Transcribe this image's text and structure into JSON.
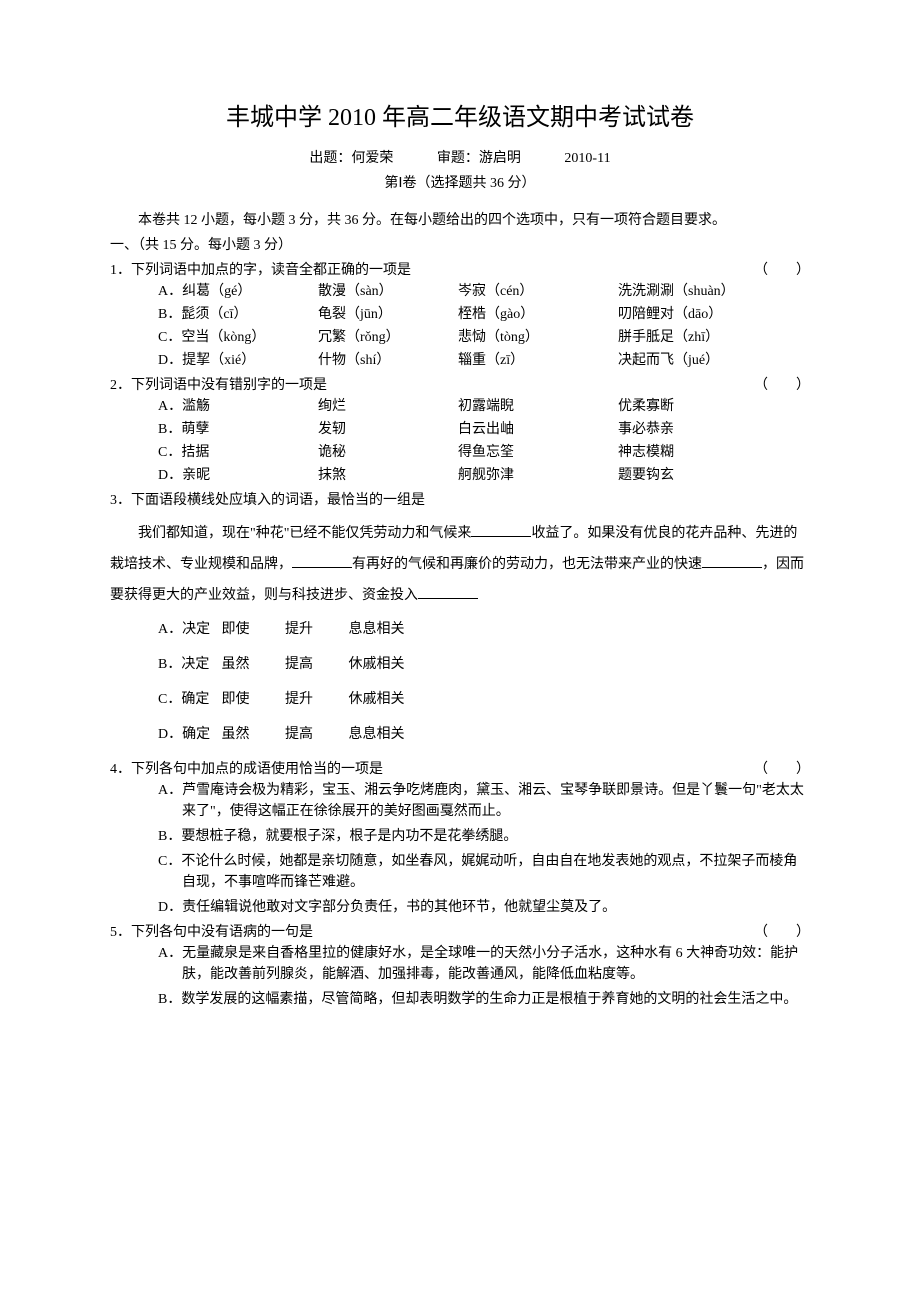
{
  "title": "丰城中学 2010 年高二年级语文期中考试试卷",
  "header": {
    "author_label": "出题：何爱荣",
    "reviewer_label": "审题：游启明",
    "date": "2010-11",
    "section": "第Ⅰ卷（选择题共 36 分）"
  },
  "intro": "本卷共 12 小题，每小题 3 分，共 36 分。在每小题给出的四个选项中，只有一项符合题目要求。",
  "part1_label": "一、（共 15 分。每小题 3 分）",
  "q1": {
    "stem": "1．下列词语中加点的字，读音全都正确的一项是",
    "paren": "（　　）",
    "rows": [
      {
        "a": "A．纠葛（gé）",
        "b": "散漫（sàn）",
        "c": "岑寂（cén）",
        "d": "洗洗涮涮（shuàn）"
      },
      {
        "a": "B．髭须（cī）",
        "b": "龟裂（jūn）",
        "c": "桎梏（gào）",
        "d": "叨陪鲤对（dāo）"
      },
      {
        "a": "C．空当（kòng）",
        "b": "冗繁（rǒng）",
        "c": "悲恸（tòng）",
        "d": "胼手胝足（zhī）"
      },
      {
        "a": "D．提挈（xié）",
        "b": "什物（shí）",
        "c": "辎重（zī）",
        "d": "决起而飞（jué）"
      }
    ]
  },
  "q2": {
    "stem": "2．下列词语中没有错别字的一项是",
    "paren": "（　　）",
    "rows": [
      {
        "a": "A．滥觞",
        "b": "绚烂",
        "c": "初露端睨",
        "d": "优柔寡断"
      },
      {
        "a": "B．萌孽",
        "b": "发轫",
        "c": "白云出岫",
        "d": "事必恭亲"
      },
      {
        "a": "C．拮据",
        "b": "诡秘",
        "c": "得鱼忘筌",
        "d": "神志模糊"
      },
      {
        "a": "D．亲昵",
        "b": "抹煞",
        "c": "舸舰弥津",
        "d": "题要钩玄"
      }
    ]
  },
  "q3": {
    "stem": "3．下面语段横线处应填入的词语，最恰当的一组是",
    "passage_p1": "我们都知道，现在\"种花\"已经不能仅凭劳动力和气候来",
    "passage_p2": "收益了。如果没有优良的花卉品种、先进的栽培技术、专业规模和品牌，",
    "passage_p3": "有再好的气候和再廉价的劳动力，也无法带来产业的快速",
    "passage_p4": "，因而要获得更大的产业效益，则与科技进步、资金投入",
    "options": [
      {
        "l": "A．决定",
        "a": "即使",
        "b": "提升",
        "c": "息息相关"
      },
      {
        "l": "B．决定",
        "a": "虽然",
        "b": "提高",
        "c": "休戚相关"
      },
      {
        "l": "C．确定",
        "a": "即使",
        "b": "提升",
        "c": "休戚相关"
      },
      {
        "l": "D．确定",
        "a": "虽然",
        "b": "提高",
        "c": "息息相关"
      }
    ]
  },
  "q4": {
    "stem": "4．下列各句中加点的成语使用恰当的一项是",
    "paren": "（　　）",
    "options": [
      "A．芦雪庵诗会极为精彩，宝玉、湘云争吃烤鹿肉，黛玉、湘云、宝琴争联即景诗。但是丫鬟一句\"老太太来了\"，使得这幅正在徐徐展开的美好图画戛然而止。",
      "B．要想桩子稳，就要根子深，根子是内功不是花拳绣腿。",
      "C．不论什么时候，她都是亲切随意，如坐春风，娓娓动听，自由自在地发表她的观点，不拉架子而棱角自现，不事喧哗而锋芒难避。",
      "D．责任编辑说他敢对文字部分负责任，书的其他环节，他就望尘莫及了。"
    ]
  },
  "q5": {
    "stem": "5．下列各句中没有语病的一句是",
    "paren": "（　　）",
    "options": [
      "A．无量藏泉是来自香格里拉的健康好水，是全球唯一的天然小分子活水，这种水有 6 大神奇功效：能护肤，能改善前列腺炎，能解酒、加强排毒，能改善通风，能降低血粘度等。",
      "B．数学发展的这幅素描，尽管简略，但却表明数学的生命力正是根植于养育她的文明的社会生活之中。"
    ]
  }
}
